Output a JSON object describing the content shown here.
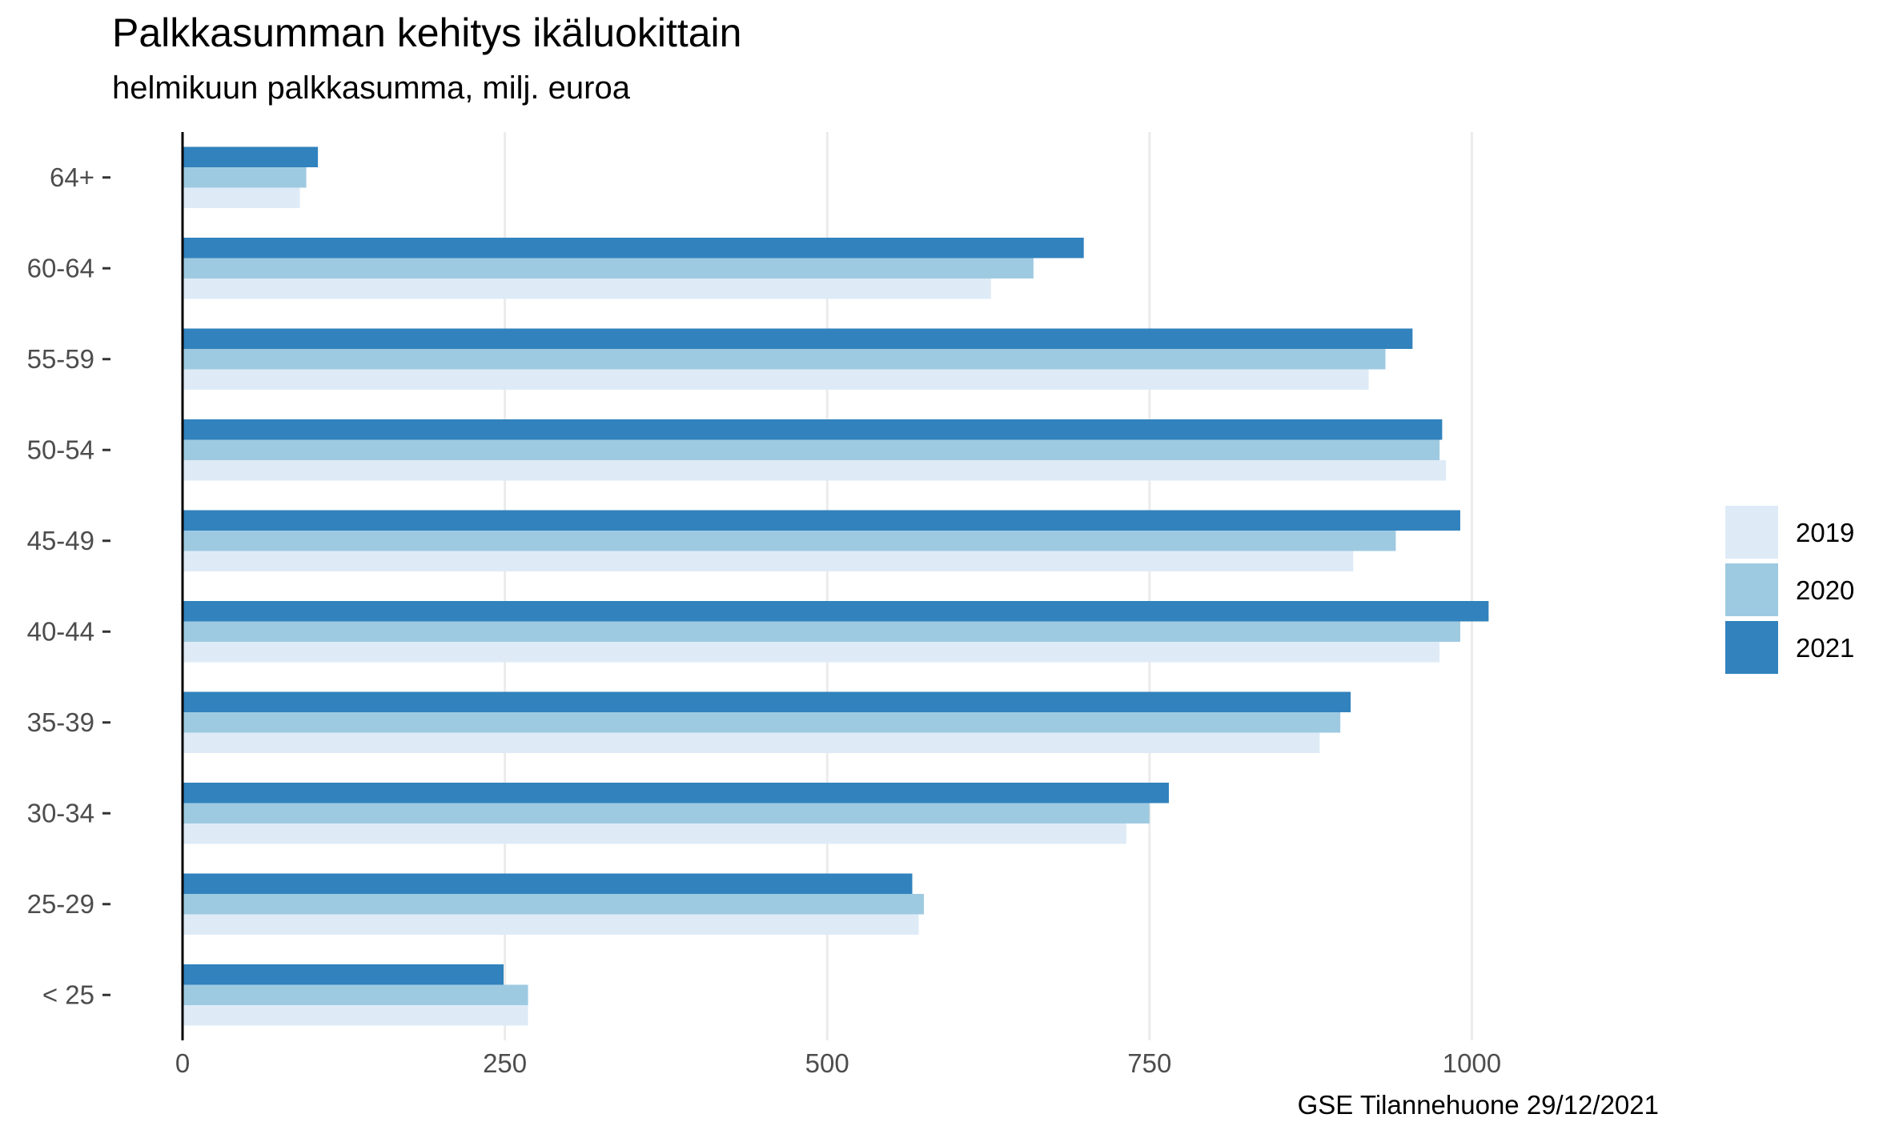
{
  "chart_data": {
    "type": "bar",
    "orientation": "horizontal",
    "title": "Palkkasumman kehitys ikäluokittain",
    "subtitle": "helmikuun palkkasumma, milj. euroa",
    "caption": "GSE Tilannehuone 29/12/2021",
    "xlabel": "",
    "ylabel": "",
    "xlim": [
      0,
      1150
    ],
    "x_ticks": [
      0,
      250,
      500,
      750,
      1000
    ],
    "grid": "vertical",
    "legend_position": "right",
    "categories": [
      "< 25",
      "25-29",
      "30-34",
      "35-39",
      "40-44",
      "45-49",
      "50-54",
      "55-59",
      "60-64",
      "64+"
    ],
    "series": [
      {
        "name": "2019",
        "color": "#deebf7",
        "values": [
          268,
          571,
          732,
          882,
          975,
          908,
          980,
          920,
          627,
          91
        ]
      },
      {
        "name": "2020",
        "color": "#9ecae1",
        "values": [
          268,
          575,
          750,
          898,
          991,
          941,
          975,
          933,
          660,
          96
        ]
      },
      {
        "name": "2021",
        "color": "#3182bd",
        "values": [
          249,
          566,
          765,
          906,
          1013,
          991,
          977,
          954,
          699,
          105
        ]
      }
    ]
  }
}
